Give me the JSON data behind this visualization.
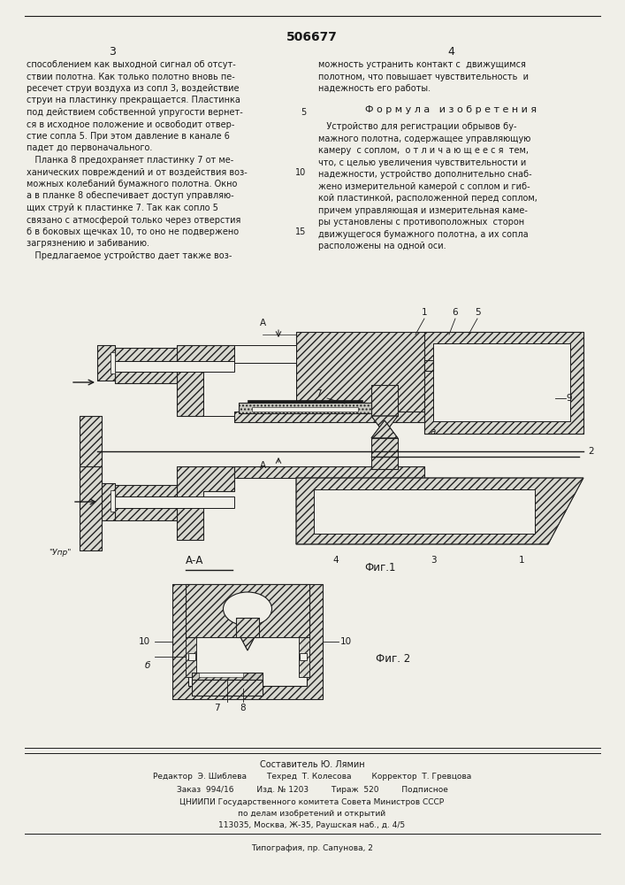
{
  "patent_number": "506677",
  "page_numbers": [
    "3",
    "4"
  ],
  "background_color": "#f0efe8",
  "text_color": "#1a1a1a",
  "left_column_text": [
    "способлением как выходной сигнал об отсут-",
    "ствии полотна. Как только полотно вновь пе-",
    "ресечет струи воздуха из сопл 3, воздействие",
    "струи на пластинку прекращается. Пластинка",
    "под действием собственной упругости вернет-",
    "ся в исходное положение и освободит отвер-",
    "стие сопла 5. При этом давление в канале 6",
    "падет до первоначального.",
    "   Планка 8 предохраняет пластинку 7 от ме-",
    "ханических повреждений и от воздействия воз-",
    "можных колебаний бумажного полотна. Окно",
    "а в планке 8 обеспечивает доступ управляю-",
    "щих струй к пластинке 7. Так как сопло 5",
    "связано с атмосферой только через отверстия",
    "б в боковых щечках 10, то оно не подвержено",
    "загрязнению и забиванию.",
    "   Предлагаемое устройство дает также воз-"
  ],
  "right_column_text_top": [
    "можность устранить контакт с  движущимся",
    "полотном, что повышает чувствительность  и",
    "надежность его работы."
  ],
  "formula_title": "Ф о р м у л а   и з о б р е т е н и я",
  "formula_text": [
    "   Устройство для регистрации обрывов бу-",
    "мажного полотна, содержащее управляющую",
    "камеру  с соплом,  о т л и ч а ю щ е е с я  тем,",
    "что, с целью увеличения чувствительности и",
    "надежности, устройство дополнительно снаб-",
    "жено измерительной камерой с соплом и гиб-",
    "кой пластинкой, расположенной перед соплом,",
    "причем управляющая и измерительная каме-",
    "ры установлены с противоположных  сторон",
    "движущегося бумажного полотна, а их сопла",
    "расположены на одной оси."
  ],
  "fig1_label": "Фиг.1",
  "fig2_label": "Фиг. 2",
  "fig_aa_label": "А-А",
  "compiler_line": "Составитель Ю. Лямин",
  "editor_line": "Редактор  Э. Шиблева        Техред  Т. Колесова        Корректор  Т. Гревцова",
  "order_line": "Заказ  994/16         Изд. № 1203         Тираж  520         Подписное",
  "institute_line1": "ЦНИИПИ Государственного комитета Совета Министров СССР",
  "institute_line2": "по делам изобретений и открытий",
  "institute_line3": "113035, Москва, Ж-35, Раушская наб., д. 4/5",
  "typography_line": "Типография, пр. Сапунова, 2"
}
